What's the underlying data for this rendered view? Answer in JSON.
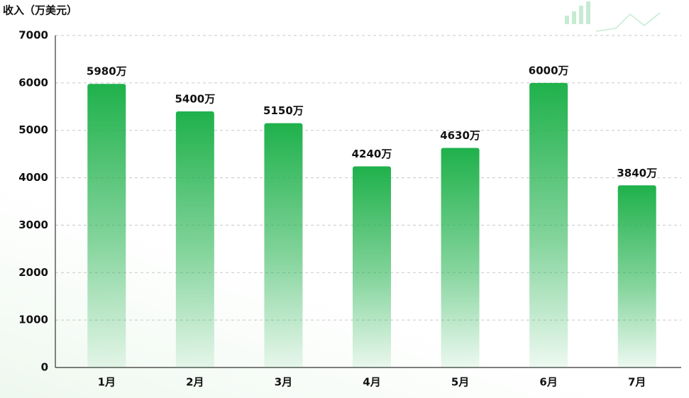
{
  "chart_data": {
    "type": "bar",
    "y_label": "收入（万美元）",
    "categories": [
      "1月",
      "2月",
      "3月",
      "4月",
      "5月",
      "6月",
      "7月"
    ],
    "values": [
      5980,
      5400,
      5150,
      4240,
      4630,
      6000,
      3840
    ],
    "value_labels": [
      "5980万",
      "5400万",
      "5150万",
      "4240万",
      "4630万",
      "6000万",
      "3840万"
    ],
    "color": "#1fb14b",
    "ylim": [
      0,
      7000
    ],
    "yticks": [
      0,
      1000,
      2000,
      3000,
      4000,
      5000,
      6000,
      7000
    ],
    "grid": true
  }
}
